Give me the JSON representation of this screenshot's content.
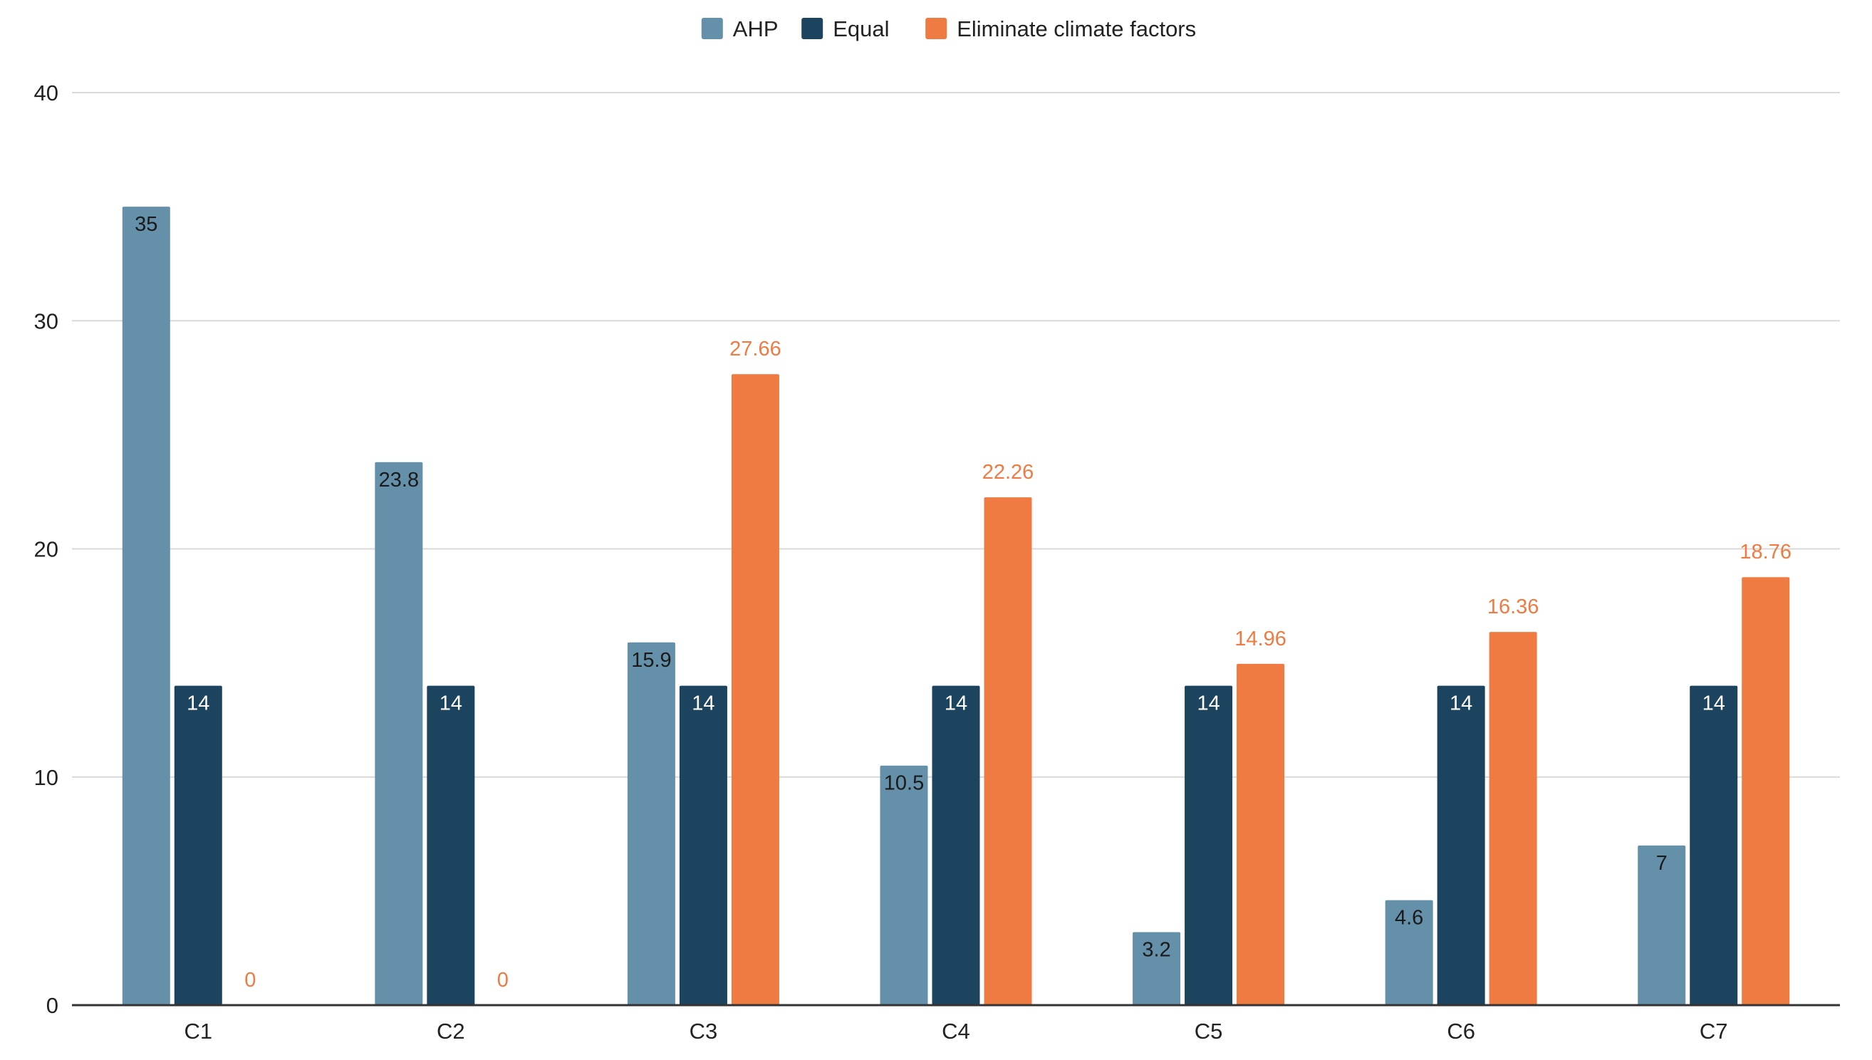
{
  "chart_data": {
    "type": "bar",
    "title": "",
    "xlabel": "",
    "ylabel": "",
    "categories": [
      "C1",
      "C2",
      "C3",
      "C4",
      "C5",
      "C6",
      "C7"
    ],
    "series": [
      {
        "name": "AHP",
        "color": "#6490AA",
        "label_color": "#1a1a1a",
        "values": [
          35,
          23.8,
          15.9,
          10.5,
          3.2,
          4.6,
          7
        ],
        "labels": [
          "35",
          "23.8",
          "15.9",
          "10.5",
          "3.2",
          "4.6",
          "7"
        ]
      },
      {
        "name": "Equal",
        "color": "#1C445E",
        "label_color": "#ffffff",
        "values": [
          14,
          14,
          14,
          14,
          14,
          14,
          14
        ],
        "labels": [
          "14",
          "14",
          "14",
          "14",
          "14",
          "14",
          "14"
        ]
      },
      {
        "name": "Eliminate climate factors",
        "color": "#EF7B43",
        "label_color": "#EF7B43",
        "values": [
          0,
          0,
          27.66,
          22.26,
          14.96,
          16.36,
          18.76
        ],
        "labels": [
          "0",
          "0",
          "27.66",
          "22.26",
          "14.96",
          "16.36",
          "18.76"
        ]
      }
    ],
    "ylim": [
      0,
      40
    ],
    "yticks": [
      0,
      10,
      20,
      30,
      40
    ],
    "ytick_labels": [
      "0",
      "10",
      "20",
      "30",
      "40"
    ],
    "grid": true,
    "legend_position": "top-center"
  }
}
